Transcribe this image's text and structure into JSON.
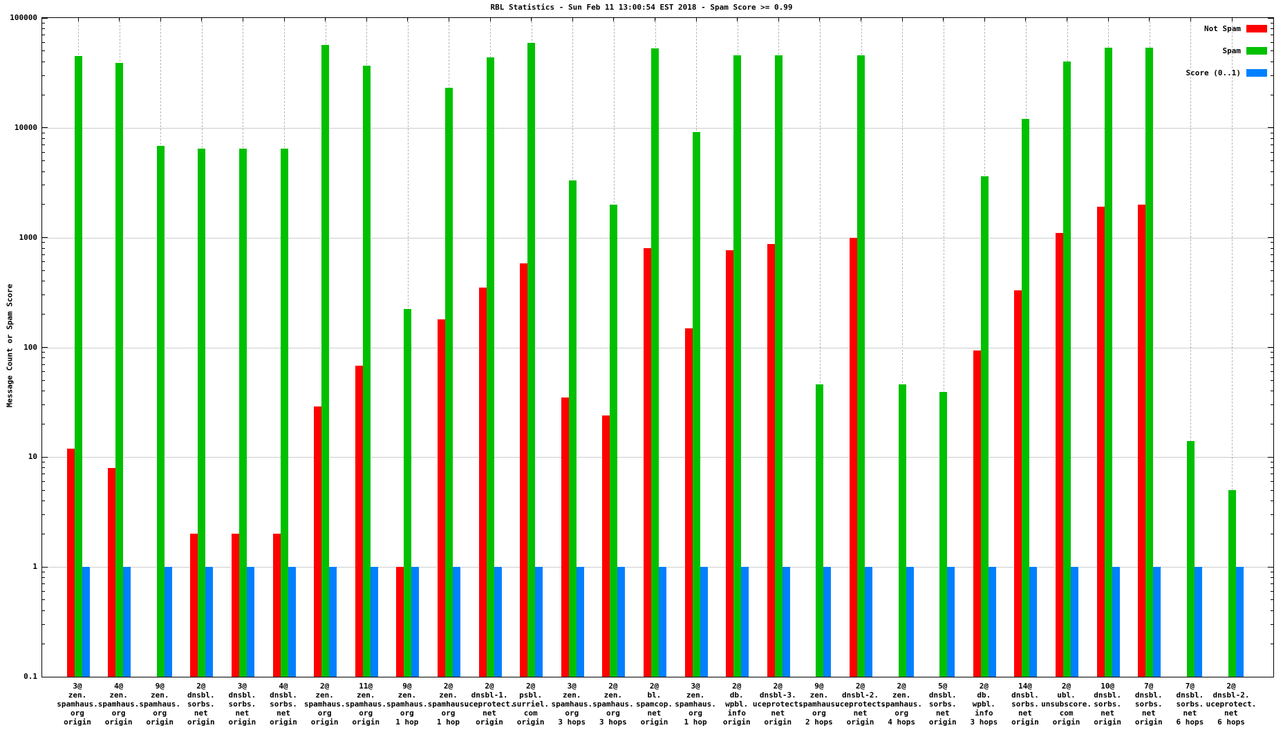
{
  "chart_data": {
    "type": "bar",
    "title": "RBL Statistics - Sun Feb 11 13:00:54 EST 2018 - Spam Score >= 0.99",
    "ylabel": "Message Count or Spam Score",
    "xlabel": "",
    "y_scale": "log",
    "ylim": [
      0.1,
      100000
    ],
    "ytick_labels": [
      "100000",
      "10000",
      "1000",
      "100",
      "10",
      "1",
      "0.1"
    ],
    "grid": true,
    "legend_position": "top-right-inside",
    "grid_color": "#9a9a9a",
    "categories": [
      [
        "3@",
        "zen.",
        "spamhaus.",
        "org",
        "origin"
      ],
      [
        "4@",
        "zen.",
        "spamhaus.",
        "org",
        "origin"
      ],
      [
        "9@",
        "zen.",
        "spamhaus.",
        "org",
        "origin"
      ],
      [
        "2@",
        "dnsbl.",
        "sorbs.",
        "net",
        "origin"
      ],
      [
        "3@",
        "dnsbl.",
        "sorbs.",
        "net",
        "origin"
      ],
      [
        "4@",
        "dnsbl.",
        "sorbs.",
        "net",
        "origin"
      ],
      [
        "2@",
        "zen.",
        "spamhaus.",
        "org",
        "origin"
      ],
      [
        "11@",
        "zen.",
        "spamhaus.",
        "org",
        "origin"
      ],
      [
        "9@",
        "zen.",
        "spamhaus.",
        "org",
        "1 hop"
      ],
      [
        "2@",
        "zen.",
        "spamhaus.",
        "org",
        "1 hop"
      ],
      [
        "2@",
        "dnsbl-1.",
        "uceprotect.",
        "net",
        "origin"
      ],
      [
        "2@",
        "psbl.",
        "surriel.",
        "com",
        "origin"
      ],
      [
        "3@",
        "zen.",
        "spamhaus.",
        "org",
        "3 hops"
      ],
      [
        "2@",
        "zen.",
        "spamhaus.",
        "org",
        "3 hops"
      ],
      [
        "2@",
        "bl.",
        "spamcop.",
        "net",
        "origin"
      ],
      [
        "3@",
        "zen.",
        "spamhaus.",
        "org",
        "1 hop"
      ],
      [
        "2@",
        "db.",
        "wpbl.",
        "info",
        "origin"
      ],
      [
        "2@",
        "dnsbl-3.",
        "uceprotect.",
        "net",
        "origin"
      ],
      [
        "9@",
        "zen.",
        "spamhaus.",
        "org",
        "2 hops"
      ],
      [
        "2@",
        "dnsbl-2.",
        "uceprotect.",
        "net",
        "origin"
      ],
      [
        "2@",
        "zen.",
        "spamhaus.",
        "org",
        "4 hops"
      ],
      [
        "5@",
        "dnsbl.",
        "sorbs.",
        "net",
        "origin"
      ],
      [
        "2@",
        "db.",
        "wpbl.",
        "info",
        "3 hops"
      ],
      [
        "14@",
        "dnsbl.",
        "sorbs.",
        "net",
        "origin"
      ],
      [
        "2@",
        "ubl.",
        "unsubscore.",
        "com",
        "origin"
      ],
      [
        "10@",
        "dnsbl.",
        "sorbs.",
        "net",
        "origin"
      ],
      [
        "7@",
        "dnsbl.",
        "sorbs.",
        "net",
        "origin"
      ],
      [
        "7@",
        "dnsbl.",
        "sorbs.",
        "net",
        "6 hops"
      ],
      [
        "2@",
        "dnsbl-2.",
        "uceprotect.",
        "net",
        "6 hops"
      ]
    ],
    "series": [
      {
        "name": "Not Spam",
        "color": "#ff0000",
        "values": [
          12,
          8,
          0,
          2,
          2,
          2,
          29,
          68,
          1,
          180,
          350,
          580,
          35,
          24,
          800,
          150,
          770,
          870,
          0,
          1000,
          0,
          0,
          94,
          330,
          1100,
          1900,
          2000,
          0,
          0
        ]
      },
      {
        "name": "Spam",
        "color": "#00c000",
        "values": [
          45000,
          39000,
          6800,
          6500,
          6500,
          6500,
          57000,
          37000,
          225,
          23000,
          44000,
          59000,
          3300,
          2000,
          53000,
          9100,
          46000,
          46000,
          46,
          46000,
          46,
          39,
          3600,
          12000,
          40000,
          54000,
          54000,
          14,
          5
        ]
      },
      {
        "name": "Score (0..1)",
        "color": "#0080ff",
        "values": [
          1,
          1,
          1,
          1,
          1,
          1,
          1,
          1,
          1,
          1,
          1,
          1,
          1,
          1,
          1,
          1,
          1,
          1,
          1,
          1,
          1,
          1,
          1,
          1,
          1,
          1,
          1,
          1,
          1
        ]
      }
    ]
  }
}
